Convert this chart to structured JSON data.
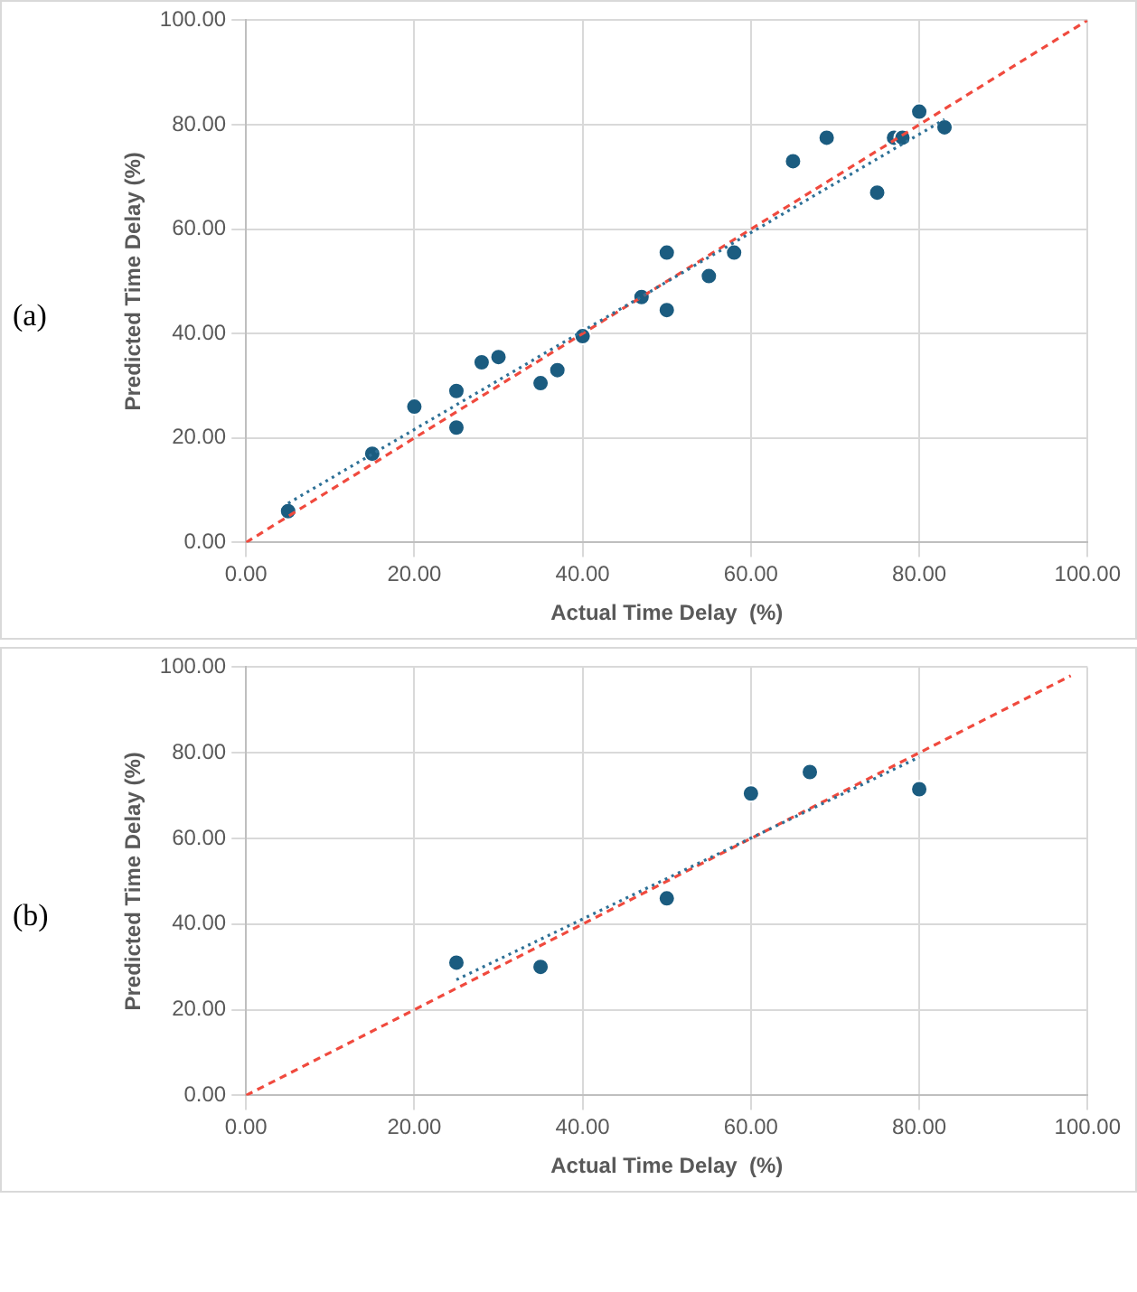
{
  "chart_data": [
    {
      "type": "scatter",
      "xlabel": "Actual Time Delay  (%)",
      "ylabel": "Predicted Time Delay (%)",
      "annotations": [
        "(a)"
      ],
      "xlim": [
        0,
        100
      ],
      "ylim": [
        0,
        100
      ],
      "xticks": [
        {
          "value": 0,
          "label": "0.00"
        },
        {
          "value": 20,
          "label": "20.00"
        },
        {
          "value": 40,
          "label": "40.00"
        },
        {
          "value": 60,
          "label": "60.00"
        },
        {
          "value": 80,
          "label": "80.00"
        },
        {
          "value": 100,
          "label": "100.00"
        }
      ],
      "yticks": [
        {
          "value": 0,
          "label": "0.00"
        },
        {
          "value": 20,
          "label": "20.00"
        },
        {
          "value": 40,
          "label": "40.00"
        },
        {
          "value": 60,
          "label": "60.00"
        },
        {
          "value": 80,
          "label": "80.00"
        },
        {
          "value": 100,
          "label": "100.00"
        }
      ],
      "grid": true,
      "legend": false,
      "series": [
        {
          "type": "scatter",
          "color": "#1b5c80",
          "marker": "circle",
          "x": [
            5,
            15,
            20,
            25,
            25,
            28,
            30,
            35,
            37,
            40,
            47,
            50,
            50,
            55,
            58,
            65,
            69,
            75,
            77,
            78,
            80,
            83
          ],
          "values": [
            6,
            17,
            26,
            29,
            22,
            34.5,
            35.5,
            30.5,
            33,
            39.5,
            47,
            55.5,
            44.5,
            51,
            55.5,
            73,
            77.5,
            67,
            77.5,
            77.5,
            82.5,
            79.5
          ]
        },
        {
          "type": "line",
          "color": "#2e7096",
          "line_style": "dotted",
          "marker": "none",
          "x": [
            5,
            83
          ],
          "values": [
            7.5,
            81
          ]
        },
        {
          "type": "line",
          "color": "#f04a3e",
          "line_style": "dashed",
          "marker": "none",
          "x": [
            0,
            100
          ],
          "values": [
            0,
            100
          ]
        }
      ]
    },
    {
      "type": "scatter",
      "xlabel": "Actual Time Delay  (%)",
      "ylabel": "Predicted Time Delay (%)",
      "annotations": [
        "(b)"
      ],
      "xlim": [
        0,
        100
      ],
      "ylim": [
        0,
        100
      ],
      "xticks": [
        {
          "value": 0,
          "label": "0.00"
        },
        {
          "value": 20,
          "label": "20.00"
        },
        {
          "value": 40,
          "label": "40.00"
        },
        {
          "value": 60,
          "label": "60.00"
        },
        {
          "value": 80,
          "label": "80.00"
        },
        {
          "value": 100,
          "label": "100.00"
        }
      ],
      "yticks": [
        {
          "value": 0,
          "label": "0.00"
        },
        {
          "value": 20,
          "label": "20.00"
        },
        {
          "value": 40,
          "label": "40.00"
        },
        {
          "value": 60,
          "label": "60.00"
        },
        {
          "value": 80,
          "label": "80.00"
        },
        {
          "value": 100,
          "label": "100.00"
        }
      ],
      "grid": true,
      "legend": false,
      "series": [
        {
          "type": "scatter",
          "color": "#1b5c80",
          "marker": "circle",
          "x": [
            25,
            35,
            50,
            60,
            67,
            80
          ],
          "values": [
            31,
            30,
            46,
            70.5,
            75.5,
            71.5
          ]
        },
        {
          "type": "line",
          "color": "#2e7096",
          "line_style": "dotted",
          "marker": "none",
          "x": [
            25,
            80
          ],
          "values": [
            27,
            79
          ]
        },
        {
          "type": "line",
          "color": "#f04a3e",
          "line_style": "dashed",
          "marker": "none",
          "x": [
            0,
            98
          ],
          "values": [
            0,
            98
          ]
        }
      ]
    }
  ]
}
